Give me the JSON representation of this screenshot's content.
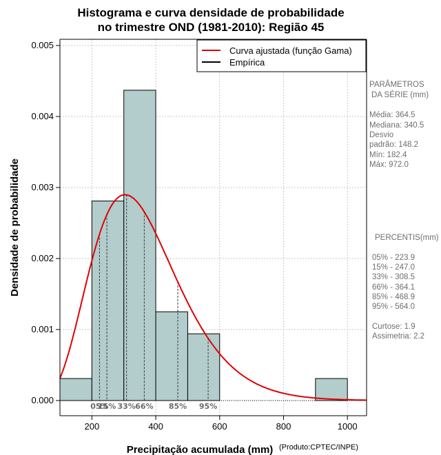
{
  "chart_data": {
    "type": "histogram",
    "title_line1": "Histograma e curva densidade de probabilidade",
    "title_line2": "no trimestre OND (1981-2010): Região 45",
    "xlabel": "Precipitação acumulada (mm)",
    "ylabel": "Densidade de probabilidade",
    "credit": "(Produto:CPTEC/INPE)",
    "xlim": [
      100,
      1060
    ],
    "ylim": [
      0,
      0.0051
    ],
    "x_ticks": [
      200,
      400,
      600,
      800,
      1000
    ],
    "x_tick_labels": [
      "200",
      "400",
      "600",
      "800",
      "1000"
    ],
    "y_ticks": [
      0,
      0.001,
      0.002,
      0.003,
      0.004,
      0.005
    ],
    "y_tick_labels": [
      "0.000",
      "0.001",
      "0.002",
      "0.003",
      "0.004",
      "0.005"
    ],
    "grid": true,
    "bars": [
      {
        "start": 100,
        "end": 200,
        "density": 0.00031
      },
      {
        "start": 200,
        "end": 300,
        "density": 0.00281
      },
      {
        "start": 300,
        "end": 400,
        "density": 0.00437
      },
      {
        "start": 400,
        "end": 500,
        "density": 0.00125
      },
      {
        "start": 500,
        "end": 600,
        "density": 0.00094
      },
      {
        "start": 900,
        "end": 1000,
        "density": 0.00031
      }
    ],
    "gamma_fit": {
      "shape": 6.04,
      "scale": 60.3
    },
    "percentile_lines": [
      {
        "label": "05%",
        "x": 223.9
      },
      {
        "label": "15%",
        "x": 247.0
      },
      {
        "label": "33%",
        "x": 308.5
      },
      {
        "label": "66%",
        "x": 364.1
      },
      {
        "label": "85%",
        "x": 468.9
      },
      {
        "label": "95%",
        "x": 564.0
      }
    ],
    "legend": {
      "position": "top-right",
      "entries": [
        {
          "label": "Curva ajustada (função Gama)",
          "color": "#e00000"
        },
        {
          "label": "Empírica",
          "color": "#000000"
        }
      ]
    },
    "colors": {
      "bar_fill": "#b3cccc",
      "curve": "#e00000"
    }
  },
  "parameters": {
    "heading_line1": "PARÂMETROS",
    "heading_line2": "DA SÉRIE (mm)",
    "rows": [
      "Média:  364.5",
      "Mediana:  340.5",
      "Desvio",
      "padrão:  148.2",
      "Mín:  182.4",
      "Máx:  972.0"
    ]
  },
  "percentiles_panel": {
    "heading": "PERCENTIS(mm)",
    "rows": [
      "05% -  223.9",
      "15% -  247.0",
      "33% -  308.5",
      "66% -  364.1",
      "85% -  468.9",
      "95% -  564.0"
    ],
    "extra_rows": [
      "Curtose:  1.9",
      "Assimetria:  2.2"
    ]
  }
}
